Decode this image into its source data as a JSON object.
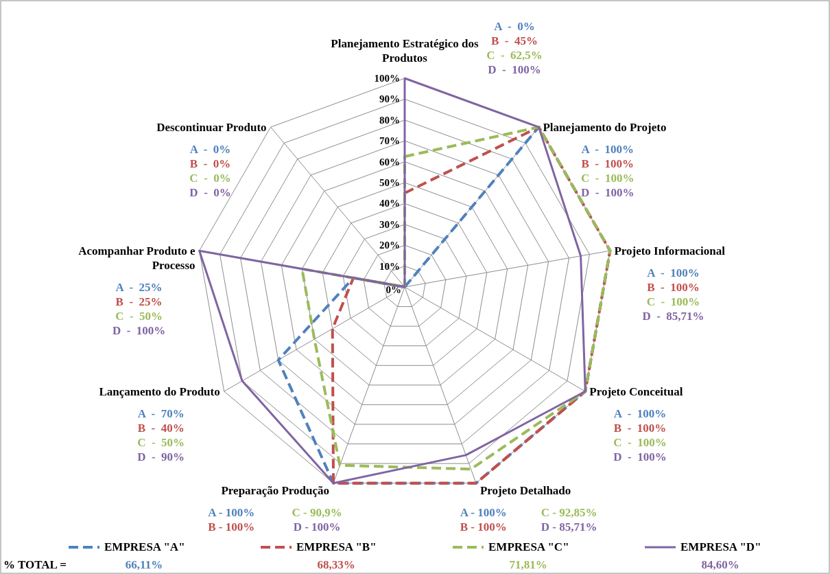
{
  "chart_data": {
    "type": "radar",
    "categories": [
      "Planejamento Estratégico dos Produtos",
      "Planejamento do Projeto",
      "Projeto Informacional",
      "Projeto Conceitual",
      "Projeto Detalhado",
      "Preparação Produção",
      "Lançamento do Produto",
      "Acompanhar Produto e Processo",
      "Descontinuar Produto"
    ],
    "series": [
      {
        "name": "EMPRESA \"A\"",
        "color": "#4f81bd",
        "line_style": "dashed",
        "values": [
          0,
          100,
          100,
          100,
          100,
          100,
          70,
          25,
          0
        ]
      },
      {
        "name": "EMPRESA \"B\"",
        "color": "#c0504d",
        "line_style": "dashed",
        "values": [
          45,
          100,
          100,
          100,
          100,
          100,
          40,
          25,
          0
        ]
      },
      {
        "name": "EMPRESA \"C\"",
        "color": "#9bbb59",
        "line_style": "dashed",
        "values": [
          62.5,
          100,
          100,
          100,
          92.85,
          90.9,
          50,
          50,
          0
        ]
      },
      {
        "name": "EMPRESA \"D\"",
        "color": "#8064a2",
        "line_style": "solid",
        "values": [
          100,
          100,
          85.71,
          100,
          85.71,
          100,
          90,
          100,
          0
        ]
      }
    ],
    "ylim": [
      0,
      100
    ],
    "yticks": [
      {
        "value": 0,
        "label": "0%"
      },
      {
        "value": 10,
        "label": "10%"
      },
      {
        "value": 20,
        "label": "20%"
      },
      {
        "value": 30,
        "label": "30%"
      },
      {
        "value": 40,
        "label": "40%"
      },
      {
        "value": 50,
        "label": "50%"
      },
      {
        "value": 60,
        "label": "60%"
      },
      {
        "value": 70,
        "label": "70%"
      },
      {
        "value": 80,
        "label": "80%"
      },
      {
        "value": 90,
        "label": "90%"
      },
      {
        "value": 100,
        "label": "100%"
      }
    ],
    "grid": true,
    "legend": "bottom",
    "annotations": [
      "A  -  0%",
      "B  -  45%",
      "C  -  62,5%",
      "D  -  100%",
      "A  -  100%",
      "B  -  100%",
      "C  -  100%",
      "D  -  100%",
      "A  -  100%",
      "B  -  100%",
      "C  -  100%",
      "D  -  85,71%",
      "A  -  100%",
      "B  -  100%",
      "C  -  100%",
      "D  -  100%",
      "A - 100%",
      "B - 100%",
      "C - 92,85%",
      "D - 85,71%",
      "A - 100%",
      "B - 100%",
      "C - 90,9%",
      "D - 100%",
      "A  -  70%",
      "B  -  40%",
      "C  -  50%",
      "D  -  90%",
      "A  -  25%",
      "B  -  25%",
      "C  -  50%",
      "D  -  100%",
      "A  -  0%",
      "B  -  0%",
      "C  -  0%",
      "D  -  0%",
      "% TOTAL =",
      "66,11%",
      "68,33%",
      "71,81%",
      "84,60%"
    ]
  }
}
